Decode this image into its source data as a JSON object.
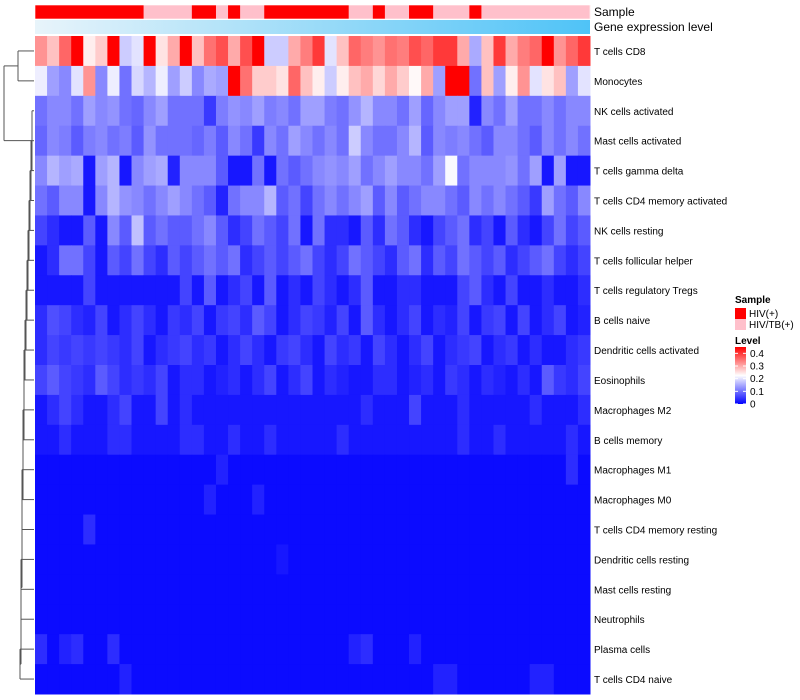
{
  "chart_data": {
    "type": "heatmap",
    "title": "",
    "annotations": [
      {
        "name": "Sample",
        "type": "categorical"
      },
      {
        "name": "Gene expression level",
        "type": "gradient"
      }
    ],
    "rows": [
      "T cells CD8",
      "Monocytes",
      "NK cells activated",
      "Mast cells activated",
      "T cells gamma delta",
      "T cells CD4 memory activated",
      "NK cells resting",
      "T cells follicular helper",
      "T cells regulatory  Tregs",
      "B cells naive",
      "Dendritic cells activated",
      "Eosinophils",
      "Macrophages M2",
      "B cells memory",
      "Macrophages M1",
      "Macrophages M0",
      "T cells CD4 memory resting",
      "Dendritic cells resting",
      "Mast cells resting",
      "Neutrophils",
      "Plasma cells",
      "T cells CD4 naive"
    ],
    "n_columns": 46,
    "sample_groups": [
      "HIV(+)",
      "HIV/TB(+)"
    ],
    "sample_annotation": [
      0,
      0,
      0,
      0,
      0,
      0,
      0,
      0,
      0,
      1,
      1,
      1,
      1,
      0,
      0,
      1,
      0,
      1,
      1,
      0,
      0,
      0,
      0,
      0,
      0,
      0,
      1,
      1,
      0,
      1,
      1,
      0,
      0,
      1,
      1,
      1,
      0,
      1,
      1,
      1,
      1,
      1,
      1,
      1,
      1,
      1
    ],
    "sample_colors": [
      "#ff0000",
      "#ffc0cb"
    ],
    "gradient_colors": [
      "#e8f4fa",
      "#4fc3f7"
    ],
    "legend_sample_title": "Sample",
    "legend_level_title": "Level",
    "legend_ticks": [
      "0.4",
      "0.3",
      "0.2",
      "0.1",
      "0"
    ],
    "level_range": [
      0,
      0.45
    ],
    "level_colors": [
      "#0000ff",
      "#ffffff",
      "#ff0000"
    ],
    "row_values": [
      [
        0.32,
        0.28,
        0.36,
        0.45,
        0.24,
        0.27,
        0.45,
        0.18,
        0.2,
        0.45,
        0.25,
        0.3,
        0.45,
        0.28,
        0.35,
        0.38,
        0.3,
        0.38,
        0.45,
        0.18,
        0.18,
        0.3,
        0.34,
        0.4,
        0.2,
        0.28,
        0.36,
        0.34,
        0.32,
        0.35,
        0.34,
        0.38,
        0.36,
        0.4,
        0.4,
        0.3,
        0.15,
        0.28,
        0.4,
        0.3,
        0.34,
        0.36,
        0.45,
        0.32,
        0.36,
        0.4
      ],
      [
        0.21,
        0.14,
        0.12,
        0.2,
        0.32,
        0.12,
        0.21,
        0.1,
        0.19,
        0.16,
        0.21,
        0.14,
        0.18,
        0.12,
        0.15,
        0.14,
        0.45,
        0.35,
        0.27,
        0.27,
        0.25,
        0.36,
        0.28,
        0.24,
        0.18,
        0.24,
        0.28,
        0.3,
        0.26,
        0.3,
        0.27,
        0.23,
        0.3,
        0.14,
        0.45,
        0.45,
        0.1,
        0.28,
        0.14,
        0.24,
        0.32,
        0.2,
        0.25,
        0.28,
        0.14,
        0.2
      ],
      [
        0.1,
        0.12,
        0.12,
        0.1,
        0.14,
        0.12,
        0.13,
        0.1,
        0.09,
        0.12,
        0.14,
        0.1,
        0.1,
        0.1,
        0.05,
        0.11,
        0.13,
        0.12,
        0.14,
        0.11,
        0.12,
        0.1,
        0.14,
        0.14,
        0.11,
        0.1,
        0.13,
        0.16,
        0.12,
        0.12,
        0.1,
        0.14,
        0.09,
        0.12,
        0.14,
        0.14,
        0.03,
        0.12,
        0.1,
        0.14,
        0.1,
        0.1,
        0.12,
        0.1,
        0.12,
        0.12
      ],
      [
        0.09,
        0.12,
        0.11,
        0.08,
        0.11,
        0.12,
        0.1,
        0.11,
        0.08,
        0.13,
        0.1,
        0.1,
        0.1,
        0.09,
        0.11,
        0.08,
        0.12,
        0.1,
        0.05,
        0.12,
        0.1,
        0.14,
        0.12,
        0.1,
        0.12,
        0.1,
        0.18,
        0.12,
        0.1,
        0.1,
        0.12,
        0.16,
        0.08,
        0.12,
        0.11,
        0.12,
        0.1,
        0.08,
        0.12,
        0.12,
        0.1,
        0.08,
        0.12,
        0.1,
        0.12,
        0.1
      ],
      [
        0.12,
        0.16,
        0.14,
        0.15,
        0.02,
        0.14,
        0.16,
        0.02,
        0.12,
        0.14,
        0.15,
        0.03,
        0.12,
        0.12,
        0.12,
        0.08,
        0.02,
        0.02,
        0.1,
        0.02,
        0.1,
        0.08,
        0.1,
        0.12,
        0.13,
        0.12,
        0.14,
        0.1,
        0.12,
        0.14,
        0.12,
        0.12,
        0.1,
        0.14,
        0.22,
        0.1,
        0.12,
        0.12,
        0.12,
        0.13,
        0.1,
        0.14,
        0.02,
        0.14,
        0.02,
        0.02
      ],
      [
        0.1,
        0.08,
        0.12,
        0.12,
        0.02,
        0.12,
        0.16,
        0.13,
        0.12,
        0.1,
        0.12,
        0.14,
        0.12,
        0.1,
        0.08,
        0.03,
        0.1,
        0.12,
        0.12,
        0.16,
        0.08,
        0.1,
        0.06,
        0.1,
        0.12,
        0.1,
        0.12,
        0.14,
        0.08,
        0.12,
        0.08,
        0.1,
        0.12,
        0.12,
        0.1,
        0.08,
        0.12,
        0.1,
        0.12,
        0.1,
        0.08,
        0.05,
        0.14,
        0.1,
        0.08,
        0.12
      ],
      [
        0.06,
        0.04,
        0.02,
        0.02,
        0.08,
        0.02,
        0.12,
        0.08,
        0.17,
        0.08,
        0.1,
        0.08,
        0.08,
        0.1,
        0.12,
        0.08,
        0.04,
        0.06,
        0.1,
        0.08,
        0.06,
        0.1,
        0.02,
        0.1,
        0.04,
        0.04,
        0.02,
        0.08,
        0.04,
        0.1,
        0.08,
        0.04,
        0.02,
        0.06,
        0.08,
        0.1,
        0.04,
        0.06,
        0.02,
        0.08,
        0.04,
        0.02,
        0.06,
        0.1,
        0.06,
        0.08
      ],
      [
        0.02,
        0.04,
        0.1,
        0.1,
        0.06,
        0.02,
        0.08,
        0.06,
        0.1,
        0.06,
        0.04,
        0.08,
        0.06,
        0.08,
        0.1,
        0.08,
        0.1,
        0.04,
        0.06,
        0.08,
        0.06,
        0.08,
        0.1,
        0.06,
        0.04,
        0.06,
        0.1,
        0.08,
        0.06,
        0.04,
        0.08,
        0.1,
        0.04,
        0.08,
        0.06,
        0.1,
        0.08,
        0.06,
        0.08,
        0.04,
        0.06,
        0.08,
        0.1,
        0.06,
        0.04,
        0.06
      ],
      [
        0.02,
        0.02,
        0.02,
        0.02,
        0.06,
        0.02,
        0.02,
        0.02,
        0.02,
        0.02,
        0.02,
        0.02,
        0.06,
        0.02,
        0.08,
        0.02,
        0.04,
        0.06,
        0.02,
        0.08,
        0.02,
        0.04,
        0.02,
        0.06,
        0.04,
        0.02,
        0.04,
        0.08,
        0.02,
        0.02,
        0.04,
        0.04,
        0.02,
        0.02,
        0.02,
        0.06,
        0.08,
        0.04,
        0.02,
        0.06,
        0.02,
        0.02,
        0.04,
        0.02,
        0.02,
        0.04
      ],
      [
        0.04,
        0.07,
        0.06,
        0.04,
        0.03,
        0.06,
        0.02,
        0.04,
        0.06,
        0.04,
        0.02,
        0.05,
        0.04,
        0.06,
        0.02,
        0.05,
        0.06,
        0.04,
        0.08,
        0.06,
        0.02,
        0.04,
        0.06,
        0.05,
        0.03,
        0.06,
        0.02,
        0.08,
        0.04,
        0.02,
        0.04,
        0.06,
        0.02,
        0.04,
        0.03,
        0.06,
        0.02,
        0.05,
        0.06,
        0.02,
        0.06,
        0.02,
        0.04,
        0.06,
        0.02,
        0.03
      ],
      [
        0.04,
        0.06,
        0.05,
        0.06,
        0.05,
        0.06,
        0.05,
        0.04,
        0.06,
        0.02,
        0.04,
        0.05,
        0.06,
        0.04,
        0.05,
        0.02,
        0.04,
        0.06,
        0.04,
        0.02,
        0.05,
        0.06,
        0.04,
        0.02,
        0.06,
        0.04,
        0.05,
        0.02,
        0.06,
        0.04,
        0.02,
        0.04,
        0.06,
        0.02,
        0.04,
        0.05,
        0.06,
        0.02,
        0.04,
        0.05,
        0.02,
        0.04,
        0.02,
        0.02,
        0.04,
        0.05
      ],
      [
        0.06,
        0.08,
        0.06,
        0.05,
        0.04,
        0.08,
        0.06,
        0.04,
        0.05,
        0.04,
        0.06,
        0.02,
        0.04,
        0.04,
        0.02,
        0.03,
        0.04,
        0.02,
        0.04,
        0.06,
        0.02,
        0.04,
        0.06,
        0.02,
        0.04,
        0.03,
        0.02,
        0.02,
        0.04,
        0.04,
        0.02,
        0.03,
        0.04,
        0.02,
        0.05,
        0.04,
        0.02,
        0.04,
        0.03,
        0.02,
        0.04,
        0.02,
        0.08,
        0.05,
        0.04,
        0.06
      ],
      [
        0.02,
        0.04,
        0.06,
        0.04,
        0.02,
        0.02,
        0.04,
        0.06,
        0.02,
        0.02,
        0.06,
        0.02,
        0.04,
        0.02,
        0.02,
        0.02,
        0.02,
        0.02,
        0.02,
        0.02,
        0.02,
        0.02,
        0.02,
        0.02,
        0.02,
        0.02,
        0.02,
        0.04,
        0.02,
        0.02,
        0.02,
        0.06,
        0.02,
        0.02,
        0.02,
        0.04,
        0.02,
        0.02,
        0.02,
        0.02,
        0.02,
        0.04,
        0.02,
        0.02,
        0.02,
        0.04
      ],
      [
        0.02,
        0.02,
        0.04,
        0.02,
        0.02,
        0.02,
        0.04,
        0.04,
        0.02,
        0.02,
        0.02,
        0.02,
        0.04,
        0.04,
        0.02,
        0.02,
        0.04,
        0.02,
        0.02,
        0.04,
        0.02,
        0.02,
        0.02,
        0.02,
        0.02,
        0.04,
        0.02,
        0.02,
        0.02,
        0.02,
        0.02,
        0.02,
        0.02,
        0.02,
        0.02,
        0.04,
        0.02,
        0.02,
        0.04,
        0.02,
        0.02,
        0.02,
        0.02,
        0.02,
        0.04,
        0.02
      ],
      [
        0.01,
        0.01,
        0.01,
        0.01,
        0.01,
        0.01,
        0.01,
        0.01,
        0.01,
        0.01,
        0.01,
        0.01,
        0.01,
        0.01,
        0.01,
        0.03,
        0.01,
        0.01,
        0.01,
        0.01,
        0.01,
        0.01,
        0.01,
        0.01,
        0.01,
        0.01,
        0.01,
        0.01,
        0.01,
        0.01,
        0.01,
        0.01,
        0.01,
        0.01,
        0.01,
        0.01,
        0.01,
        0.01,
        0.01,
        0.01,
        0.01,
        0.01,
        0.01,
        0.01,
        0.04,
        0.01
      ],
      [
        0.01,
        0.01,
        0.01,
        0.01,
        0.01,
        0.01,
        0.01,
        0.01,
        0.01,
        0.01,
        0.01,
        0.01,
        0.01,
        0.01,
        0.03,
        0.01,
        0.01,
        0.01,
        0.03,
        0.01,
        0.01,
        0.01,
        0.01,
        0.01,
        0.01,
        0.01,
        0.01,
        0.01,
        0.01,
        0.01,
        0.01,
        0.01,
        0.01,
        0.01,
        0.01,
        0.01,
        0.01,
        0.01,
        0.01,
        0.01,
        0.01,
        0.01,
        0.01,
        0.01,
        0.01,
        0.01
      ],
      [
        0.01,
        0.01,
        0.01,
        0.01,
        0.04,
        0.01,
        0.01,
        0.01,
        0.01,
        0.01,
        0.01,
        0.01,
        0.01,
        0.01,
        0.01,
        0.01,
        0.01,
        0.01,
        0.01,
        0.01,
        0.01,
        0.01,
        0.01,
        0.01,
        0.01,
        0.01,
        0.01,
        0.01,
        0.01,
        0.01,
        0.01,
        0.01,
        0.01,
        0.01,
        0.01,
        0.01,
        0.01,
        0.01,
        0.01,
        0.01,
        0.01,
        0.01,
        0.01,
        0.01,
        0.01,
        0.01
      ],
      [
        0.01,
        0.01,
        0.01,
        0.01,
        0.01,
        0.01,
        0.01,
        0.01,
        0.01,
        0.01,
        0.01,
        0.01,
        0.01,
        0.01,
        0.01,
        0.01,
        0.01,
        0.01,
        0.01,
        0.01,
        0.02,
        0.01,
        0.01,
        0.01,
        0.01,
        0.01,
        0.01,
        0.01,
        0.01,
        0.01,
        0.01,
        0.01,
        0.01,
        0.01,
        0.01,
        0.01,
        0.01,
        0.01,
        0.01,
        0.01,
        0.01,
        0.01,
        0.01,
        0.01,
        0.01,
        0.01
      ],
      [
        0.01,
        0.01,
        0.01,
        0.01,
        0.01,
        0.01,
        0.01,
        0.01,
        0.01,
        0.01,
        0.01,
        0.01,
        0.01,
        0.01,
        0.01,
        0.01,
        0.01,
        0.01,
        0.01,
        0.01,
        0.01,
        0.01,
        0.01,
        0.01,
        0.01,
        0.01,
        0.01,
        0.01,
        0.01,
        0.01,
        0.01,
        0.01,
        0.01,
        0.01,
        0.01,
        0.01,
        0.01,
        0.01,
        0.01,
        0.01,
        0.01,
        0.01,
        0.01,
        0.01,
        0.01,
        0.01
      ],
      [
        0.01,
        0.01,
        0.01,
        0.01,
        0.01,
        0.01,
        0.01,
        0.01,
        0.01,
        0.01,
        0.01,
        0.01,
        0.01,
        0.01,
        0.01,
        0.01,
        0.01,
        0.01,
        0.01,
        0.01,
        0.01,
        0.01,
        0.01,
        0.01,
        0.01,
        0.01,
        0.01,
        0.01,
        0.01,
        0.01,
        0.01,
        0.01,
        0.01,
        0.01,
        0.01,
        0.01,
        0.01,
        0.01,
        0.01,
        0.01,
        0.01,
        0.01,
        0.01,
        0.01,
        0.01,
        0.01
      ],
      [
        0.04,
        0.01,
        0.03,
        0.04,
        0.01,
        0.01,
        0.04,
        0.01,
        0.01,
        0.01,
        0.01,
        0.01,
        0.01,
        0.01,
        0.01,
        0.01,
        0.01,
        0.01,
        0.01,
        0.01,
        0.01,
        0.01,
        0.01,
        0.01,
        0.01,
        0.01,
        0.03,
        0.04,
        0.01,
        0.01,
        0.01,
        0.03,
        0.01,
        0.01,
        0.01,
        0.01,
        0.01,
        0.01,
        0.01,
        0.01,
        0.01,
        0.01,
        0.01,
        0.01,
        0.01,
        0.01
      ],
      [
        0.01,
        0.01,
        0.01,
        0.01,
        0.01,
        0.01,
        0.01,
        0.03,
        0.01,
        0.01,
        0.01,
        0.01,
        0.01,
        0.01,
        0.01,
        0.01,
        0.01,
        0.01,
        0.01,
        0.01,
        0.01,
        0.01,
        0.01,
        0.01,
        0.01,
        0.01,
        0.01,
        0.01,
        0.01,
        0.01,
        0.01,
        0.01,
        0.01,
        0.03,
        0.03,
        0.01,
        0.01,
        0.01,
        0.01,
        0.01,
        0.01,
        0.03,
        0.03,
        0.01,
        0.01,
        0.01
      ]
    ]
  }
}
